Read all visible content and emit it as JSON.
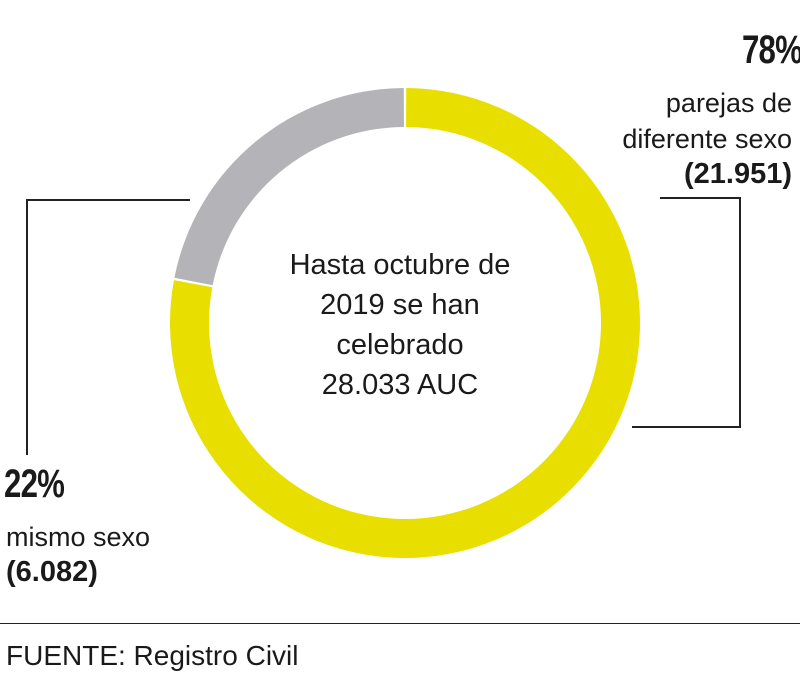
{
  "chart_data": {
    "type": "pie",
    "style": "donut",
    "center_text": [
      "Hasta octubre de",
      "2019 se han",
      "celebrado",
      "28.033 AUC"
    ],
    "slices": [
      {
        "label_lines": [
          "parejas de",
          "diferente sexo"
        ],
        "percent": 78,
        "percent_label": "78%",
        "count": 21951,
        "count_label": "(21.951)",
        "color": "#e8df00"
      },
      {
        "label_lines": [
          "mismo sexo"
        ],
        "percent": 22,
        "percent_label": "22%",
        "count": 6082,
        "count_label": "(6.082)",
        "color": "#b4b4b8"
      }
    ],
    "start_angle_deg": 0,
    "direction": "clockwise"
  },
  "source": "FUENTE: Registro Civil"
}
